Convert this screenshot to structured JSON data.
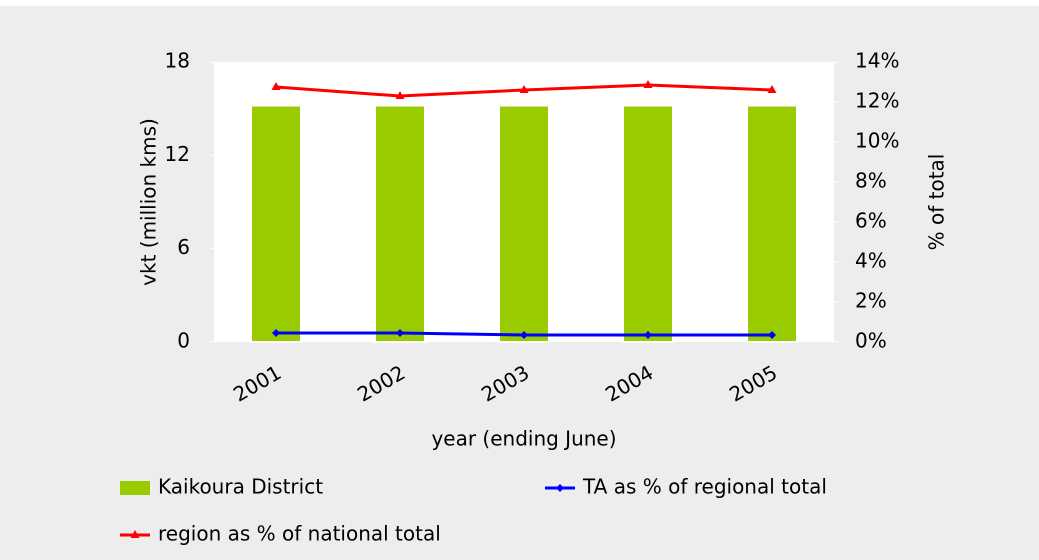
{
  "chart_data": {
    "type": "bar_line",
    "categories": [
      "2001",
      "2002",
      "2003",
      "2004",
      "2005"
    ],
    "series": [
      {
        "name": "Kaikoura District",
        "type": "bar",
        "color": "#99cc00",
        "values": [
          15.2,
          15.2,
          15.2,
          15.2,
          15.2
        ]
      },
      {
        "name": "TA as % of regional total",
        "type": "line",
        "axis": "y2",
        "color": "#0000ff",
        "values": [
          0.45,
          0.45,
          0.35,
          0.35,
          0.35
        ]
      },
      {
        "name": "region as % of national total",
        "type": "line",
        "axis": "y2",
        "color": "#ff0000",
        "values": [
          12.75,
          12.3,
          12.6,
          12.85,
          12.6
        ]
      }
    ],
    "xlabel": "year (ending June)",
    "ylabel": "vkt (million kms)",
    "y2label": "% of total",
    "ylim": [
      0,
      18
    ],
    "yticks": [
      0,
      6,
      12,
      18
    ],
    "y2lim": [
      0,
      14
    ],
    "y2ticks": [
      {
        "value": 0,
        "label": "0%"
      },
      {
        "value": 2,
        "label": "2%"
      },
      {
        "value": 4,
        "label": "4%"
      },
      {
        "value": 6,
        "label": "6%"
      },
      {
        "value": 8,
        "label": "8%"
      },
      {
        "value": 10,
        "label": "10%"
      },
      {
        "value": 12,
        "label": "12%"
      },
      {
        "value": 14,
        "label": "14%"
      }
    ],
    "legend": "bottom"
  }
}
